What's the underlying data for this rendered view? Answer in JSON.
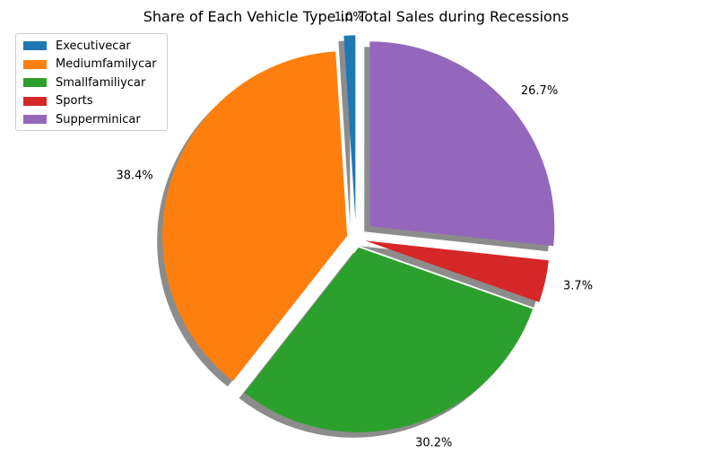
{
  "chart_data": {
    "type": "pie",
    "title": "Share of Each Vehicle Type in Total Sales during Recessions",
    "categories": [
      "Executivecar",
      "Mediumfamilycar",
      "Smallfamiliycar",
      "Sports",
      "Supperminicar"
    ],
    "values": [
      1.0,
      38.4,
      30.2,
      3.7,
      26.7
    ],
    "value_labels": [
      "1.0%",
      "38.4%",
      "30.2%",
      "3.7%",
      "26.7%"
    ],
    "colors": [
      "#1f77b4",
      "#ff7f0e",
      "#2ca02c",
      "#d62728",
      "#9467bd"
    ],
    "explode": [
      0.1,
      0.05,
      0.05,
      0.05,
      0.1
    ],
    "shadow": true,
    "legend_position": "upper-left",
    "xlabel": "",
    "ylabel": ""
  }
}
